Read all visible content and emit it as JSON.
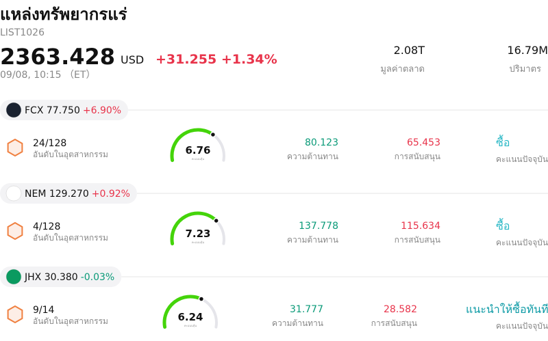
{
  "header": {
    "title": "แหล่งทรัพยากรแร่",
    "code": "LIST1026",
    "price": "2363.428",
    "currency": "USD",
    "change": "+31.255 +1.34%",
    "time": "09/08, 10:15 （ET）",
    "market_cap": "2.08T",
    "market_cap_label": "มูลค่าตลาด",
    "volume": "16.79M",
    "volume_label": "ปริมาตร"
  },
  "stocks": [
    {
      "ticker": "FCX 77.750",
      "change": "+6.90%",
      "rank": "24/128",
      "rank_label": "อันดับในอุตสาหกรรม",
      "score": "6.76",
      "score_label": "คะแนนหุ้น",
      "resistance": "80.123",
      "resistance_label": "ความต้านทาน",
      "support": "65.453",
      "support_label": "การสนับสนุน",
      "rating": "ซื้อ",
      "rating_label": "คะแนนปัจจุบัน"
    },
    {
      "ticker": "NEM 129.270",
      "change": "+0.92%",
      "rank": "4/128",
      "rank_label": "อันดับในอุตสาหกรรม",
      "score": "7.23",
      "score_label": "คะแนนหุ้น",
      "resistance": "137.778",
      "resistance_label": "ความต้านทาน",
      "support": "115.634",
      "support_label": "การสนับสนุน",
      "rating": "ซื้อ",
      "rating_label": "คะแนนปัจจุบัน"
    },
    {
      "ticker": "JHX 30.380",
      "change": "-0.03%",
      "rank": "9/14",
      "rank_label": "อันดับในอุตสาหกรรม",
      "score": "6.24",
      "score_label": "คะแนนหุ้น",
      "resistance": "31.777",
      "resistance_label": "ความต้านทาน",
      "support": "28.582",
      "support_label": "การสนับสนุน",
      "rating": "แนะนำให้ซื้อทันที",
      "rating_label": "คะแนนปัจจุบัน"
    }
  ]
}
